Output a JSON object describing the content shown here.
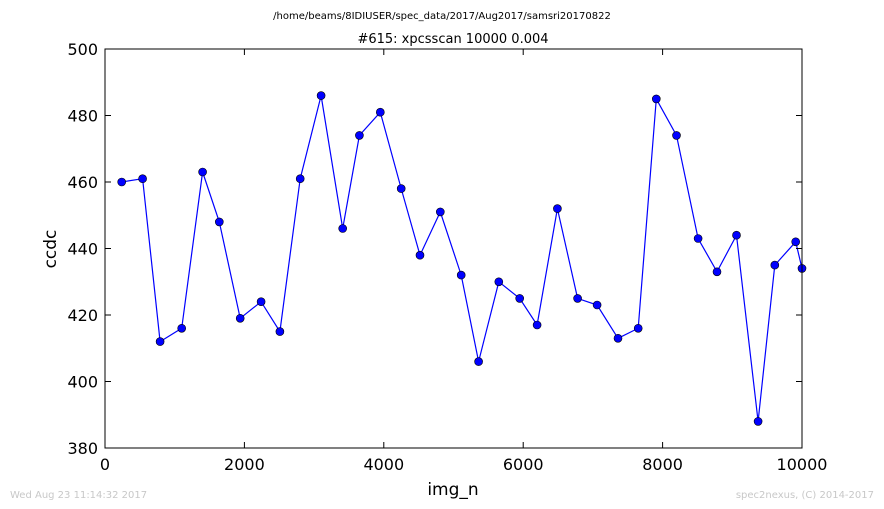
{
  "header": {
    "path": "/home/beams/8IDIUSER/spec_data/2017/Aug2017/samsri20170822"
  },
  "footer": {
    "timestamp": "Wed Aug 23 11:14:32 2017",
    "credit": "spec2nexus, (C) 2014-2017"
  },
  "chart_data": {
    "type": "line",
    "title": "#615: xpcsscan 10000 0.004",
    "xlabel": "img_n",
    "ylabel": "ccdc",
    "xlim": [
      0,
      10000
    ],
    "ylim": [
      380,
      500
    ],
    "xticks": [
      "0",
      "2000",
      "4000",
      "6000",
      "8000",
      "10000"
    ],
    "yticks": [
      "380",
      "400",
      "420",
      "440",
      "460",
      "480",
      "500"
    ],
    "grid": false,
    "series": [
      {
        "color": "#0000ff",
        "marker": "circle",
        "x": [
          240,
          540,
          790,
          1100,
          1400,
          1640,
          1940,
          2240,
          2510,
          2800,
          3100,
          3410,
          3650,
          3950,
          4250,
          4520,
          4810,
          5110,
          5360,
          5650,
          5950,
          6200,
          6490,
          6780,
          7060,
          7360,
          7650,
          7910,
          8200,
          8510,
          8780,
          9060,
          9370,
          9610,
          9910,
          10000
        ],
        "y": [
          460,
          461,
          412,
          416,
          463,
          448,
          419,
          424,
          415,
          461,
          486,
          446,
          474,
          481,
          458,
          438,
          451,
          432,
          406,
          430,
          425,
          417,
          452,
          425,
          423,
          413,
          416,
          485,
          474,
          443,
          433,
          444,
          388,
          435,
          442,
          434
        ]
      }
    ]
  }
}
